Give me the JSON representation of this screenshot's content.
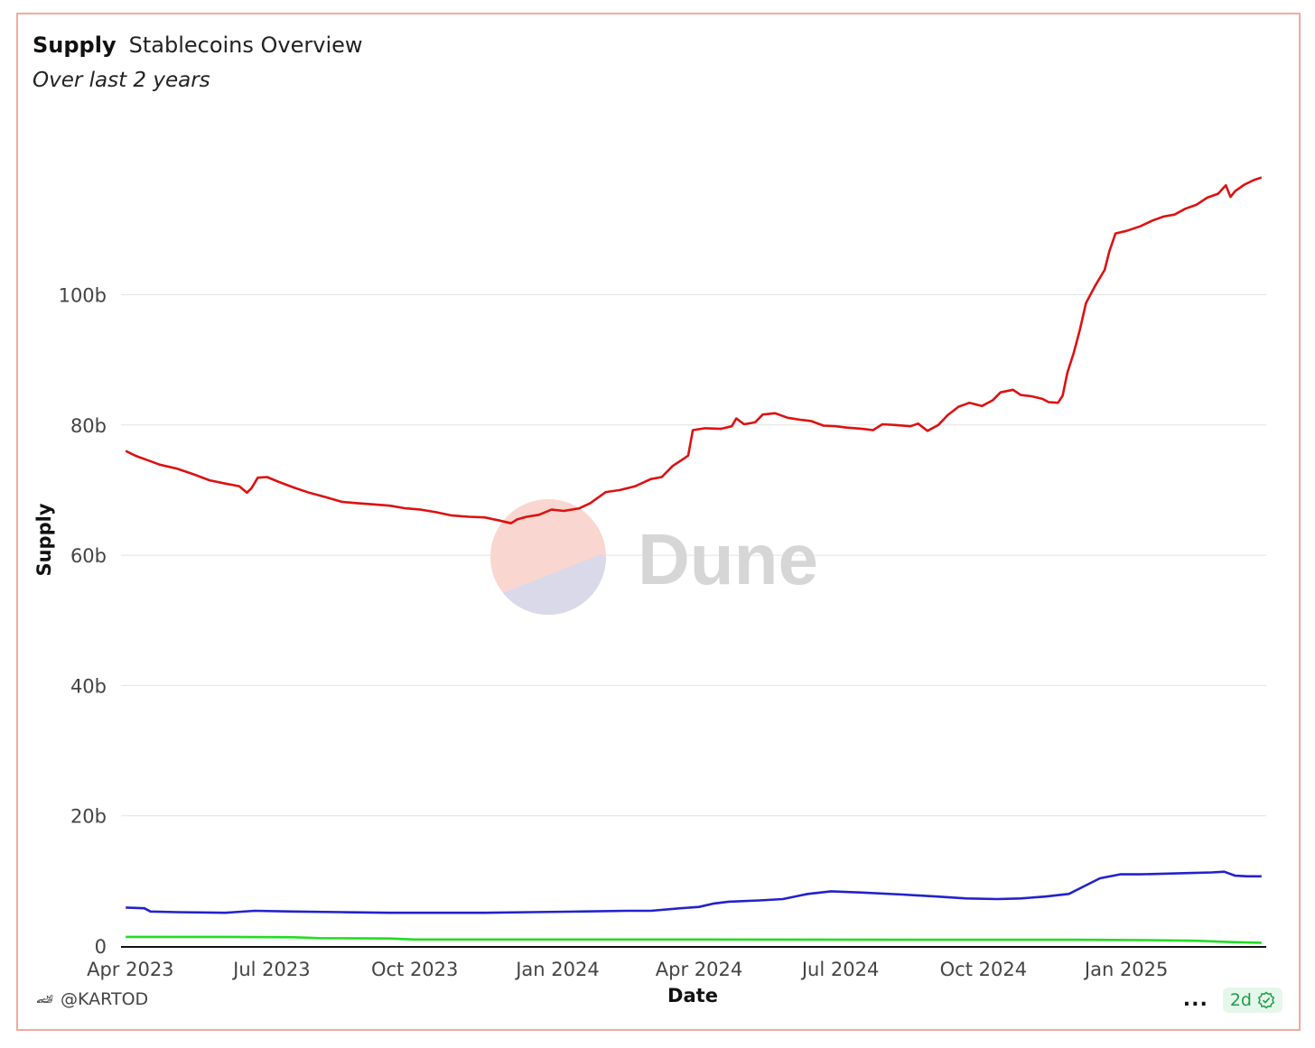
{
  "header": {
    "title": "Supply",
    "subtitle_name": "Stablecoins Overview",
    "period": "Over last 2 years"
  },
  "watermark": {
    "text": "Dune"
  },
  "footer": {
    "author": "@KARTOD",
    "more": "...",
    "freshness": "2d"
  },
  "colors": {
    "series_red": "#dd1111",
    "series_blue": "#2222cc",
    "series_green": "#22dd22",
    "grid": "#e2e2e2",
    "card_border": "#f4a99b"
  },
  "chart_data": {
    "type": "line",
    "title": "",
    "xlabel": "Date",
    "ylabel": "Supply",
    "x_range": [
      "2023-03-26",
      "2025-04-01"
    ],
    "ylim": [
      0,
      130000000000
    ],
    "y_ticks": [
      {
        "value": 0,
        "label": "0"
      },
      {
        "value": 20000000000,
        "label": "20b"
      },
      {
        "value": 40000000000,
        "label": "40b"
      },
      {
        "value": 60000000000,
        "label": "60b"
      },
      {
        "value": 80000000000,
        "label": "80b"
      },
      {
        "value": 100000000000,
        "label": "100b"
      }
    ],
    "x_ticks": [
      {
        "date": "2023-04-01",
        "label": "Apr 2023"
      },
      {
        "date": "2023-07-01",
        "label": "Jul 2023"
      },
      {
        "date": "2023-10-01",
        "label": "Oct 2023"
      },
      {
        "date": "2024-01-01",
        "label": "Jan 2024"
      },
      {
        "date": "2024-04-01",
        "label": "Apr 2024"
      },
      {
        "date": "2024-07-01",
        "label": "Jul 2024"
      },
      {
        "date": "2024-10-01",
        "label": "Oct 2024"
      },
      {
        "date": "2025-01-01",
        "label": "Jan 2025"
      }
    ],
    "grid": true,
    "legend": "none",
    "series": [
      {
        "color": "#dd1111",
        "points": [
          [
            "2023-03-29",
            76.0
          ],
          [
            "2023-04-05",
            75.2
          ],
          [
            "2023-04-12",
            74.6
          ],
          [
            "2023-04-20",
            73.9
          ],
          [
            "2023-05-01",
            73.3
          ],
          [
            "2023-05-12",
            72.4
          ],
          [
            "2023-05-22",
            71.5
          ],
          [
            "2023-06-01",
            71.0
          ],
          [
            "2023-06-10",
            70.6
          ],
          [
            "2023-06-15",
            69.6
          ],
          [
            "2023-06-18",
            70.3
          ],
          [
            "2023-06-22",
            71.9
          ],
          [
            "2023-06-28",
            72.0
          ],
          [
            "2023-07-05",
            71.3
          ],
          [
            "2023-07-15",
            70.4
          ],
          [
            "2023-07-25",
            69.6
          ],
          [
            "2023-08-05",
            68.9
          ],
          [
            "2023-08-15",
            68.2
          ],
          [
            "2023-08-25",
            68.0
          ],
          [
            "2023-09-05",
            67.8
          ],
          [
            "2023-09-15",
            67.6
          ],
          [
            "2023-09-25",
            67.2
          ],
          [
            "2023-10-05",
            67.0
          ],
          [
            "2023-10-15",
            66.6
          ],
          [
            "2023-10-25",
            66.1
          ],
          [
            "2023-11-05",
            65.9
          ],
          [
            "2023-11-15",
            65.8
          ],
          [
            "2023-11-25",
            65.3
          ],
          [
            "2023-12-02",
            64.9
          ],
          [
            "2023-12-06",
            65.5
          ],
          [
            "2023-12-12",
            65.9
          ],
          [
            "2023-12-20",
            66.2
          ],
          [
            "2023-12-28",
            67.0
          ],
          [
            "2024-01-05",
            66.8
          ],
          [
            "2024-01-15",
            67.2
          ],
          [
            "2024-01-22",
            68.0
          ],
          [
            "2024-02-01",
            69.7
          ],
          [
            "2024-02-10",
            70.0
          ],
          [
            "2024-02-20",
            70.6
          ],
          [
            "2024-03-01",
            71.7
          ],
          [
            "2024-03-08",
            72.0
          ],
          [
            "2024-03-15",
            73.7
          ],
          [
            "2024-03-22",
            74.8
          ],
          [
            "2024-03-25",
            75.3
          ],
          [
            "2024-03-28",
            79.2
          ],
          [
            "2024-04-05",
            79.5
          ],
          [
            "2024-04-15",
            79.4
          ],
          [
            "2024-04-22",
            79.8
          ],
          [
            "2024-04-25",
            81.0
          ],
          [
            "2024-04-30",
            80.1
          ],
          [
            "2024-05-07",
            80.4
          ],
          [
            "2024-05-12",
            81.6
          ],
          [
            "2024-05-20",
            81.8
          ],
          [
            "2024-05-28",
            81.1
          ],
          [
            "2024-06-05",
            80.8
          ],
          [
            "2024-06-12",
            80.6
          ],
          [
            "2024-06-20",
            79.9
          ],
          [
            "2024-06-28",
            79.8
          ],
          [
            "2024-07-05",
            79.6
          ],
          [
            "2024-07-15",
            79.4
          ],
          [
            "2024-07-22",
            79.2
          ],
          [
            "2024-07-28",
            80.1
          ],
          [
            "2024-08-05",
            80.0
          ],
          [
            "2024-08-15",
            79.8
          ],
          [
            "2024-08-20",
            80.2
          ],
          [
            "2024-08-26",
            79.1
          ],
          [
            "2024-09-02",
            80.0
          ],
          [
            "2024-09-08",
            81.5
          ],
          [
            "2024-09-15",
            82.8
          ],
          [
            "2024-09-22",
            83.4
          ],
          [
            "2024-09-30",
            82.9
          ],
          [
            "2024-10-07",
            83.8
          ],
          [
            "2024-10-12",
            85.0
          ],
          [
            "2024-10-20",
            85.4
          ],
          [
            "2024-10-25",
            84.6
          ],
          [
            "2024-11-01",
            84.4
          ],
          [
            "2024-11-08",
            84.0
          ],
          [
            "2024-11-12",
            83.5
          ],
          [
            "2024-11-18",
            83.4
          ],
          [
            "2024-11-21",
            84.5
          ],
          [
            "2024-11-24",
            88.0
          ],
          [
            "2024-11-28",
            91.0
          ],
          [
            "2024-12-02",
            94.5
          ],
          [
            "2024-12-06",
            98.7
          ],
          [
            "2024-12-12",
            101.4
          ],
          [
            "2024-12-18",
            103.8
          ],
          [
            "2024-12-21",
            106.6
          ],
          [
            "2024-12-25",
            109.4
          ],
          [
            "2025-01-01",
            109.8
          ],
          [
            "2025-01-10",
            110.5
          ],
          [
            "2025-01-18",
            111.4
          ],
          [
            "2025-01-25",
            112.0
          ],
          [
            "2025-02-01",
            112.3
          ],
          [
            "2025-02-08",
            113.2
          ],
          [
            "2025-02-15",
            113.8
          ],
          [
            "2025-02-22",
            114.9
          ],
          [
            "2025-03-01",
            115.5
          ],
          [
            "2025-03-06",
            116.8
          ],
          [
            "2025-03-09",
            115.0
          ],
          [
            "2025-03-12",
            115.9
          ],
          [
            "2025-03-18",
            116.9
          ],
          [
            "2025-03-24",
            117.6
          ],
          [
            "2025-03-29",
            118.0
          ]
        ]
      },
      {
        "color": "#2222cc",
        "points": [
          [
            "2023-03-29",
            5.9
          ],
          [
            "2023-04-10",
            5.8
          ],
          [
            "2023-04-14",
            5.3
          ],
          [
            "2023-05-01",
            5.2
          ],
          [
            "2023-06-01",
            5.1
          ],
          [
            "2023-06-20",
            5.4
          ],
          [
            "2023-07-15",
            5.3
          ],
          [
            "2023-08-15",
            5.2
          ],
          [
            "2023-09-15",
            5.1
          ],
          [
            "2023-10-15",
            5.1
          ],
          [
            "2023-11-15",
            5.1
          ],
          [
            "2023-12-15",
            5.2
          ],
          [
            "2024-01-15",
            5.3
          ],
          [
            "2024-02-15",
            5.4
          ],
          [
            "2024-03-01",
            5.4
          ],
          [
            "2024-03-20",
            5.8
          ],
          [
            "2024-04-01",
            6.0
          ],
          [
            "2024-04-10",
            6.5
          ],
          [
            "2024-04-20",
            6.8
          ],
          [
            "2024-05-10",
            7.0
          ],
          [
            "2024-05-25",
            7.2
          ],
          [
            "2024-06-10",
            8.0
          ],
          [
            "2024-06-25",
            8.4
          ],
          [
            "2024-07-15",
            8.2
          ],
          [
            "2024-08-10",
            7.9
          ],
          [
            "2024-09-01",
            7.6
          ],
          [
            "2024-09-20",
            7.3
          ],
          [
            "2024-10-10",
            7.2
          ],
          [
            "2024-10-25",
            7.3
          ],
          [
            "2024-11-10",
            7.6
          ],
          [
            "2024-11-25",
            8.0
          ],
          [
            "2024-12-05",
            9.2
          ],
          [
            "2024-12-15",
            10.4
          ],
          [
            "2024-12-28",
            11.0
          ],
          [
            "2025-01-10",
            11.0
          ],
          [
            "2025-01-25",
            11.1
          ],
          [
            "2025-02-10",
            11.2
          ],
          [
            "2025-02-25",
            11.3
          ],
          [
            "2025-03-05",
            11.4
          ],
          [
            "2025-03-12",
            10.8
          ],
          [
            "2025-03-20",
            10.7
          ],
          [
            "2025-03-29",
            10.7
          ]
        ]
      },
      {
        "color": "#22dd22",
        "points": [
          [
            "2023-03-29",
            1.4
          ],
          [
            "2023-06-01",
            1.4
          ],
          [
            "2023-07-15",
            1.35
          ],
          [
            "2023-08-01",
            1.2
          ],
          [
            "2023-09-15",
            1.15
          ],
          [
            "2023-10-01",
            1.0
          ],
          [
            "2024-03-01",
            1.0
          ],
          [
            "2024-09-01",
            0.95
          ],
          [
            "2024-12-01",
            0.95
          ],
          [
            "2025-01-15",
            0.9
          ],
          [
            "2025-02-15",
            0.8
          ],
          [
            "2025-03-10",
            0.6
          ],
          [
            "2025-03-29",
            0.5
          ]
        ]
      }
    ]
  }
}
